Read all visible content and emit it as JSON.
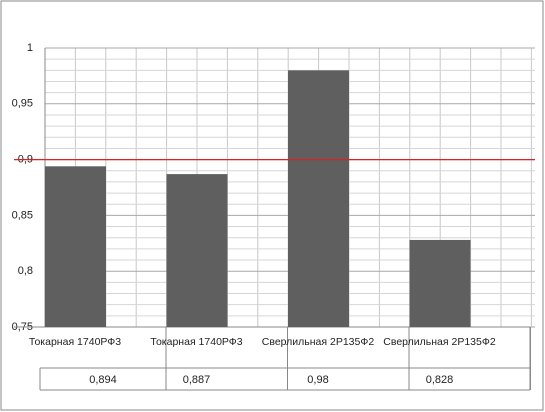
{
  "chart_data": {
    "type": "bar",
    "categories": [
      "Токарная  1740РФ3",
      "Токарная 1740РФ3",
      "Сверлильная 2Р135Ф2",
      "Сверлильная 2Р135Ф2"
    ],
    "values": [
      0.894,
      0.887,
      0.98,
      0.828
    ],
    "value_labels": [
      "0,894",
      "0,887",
      "0,98",
      "0,828"
    ],
    "color": "#5f5f5f",
    "ylim": [
      0.75,
      1
    ],
    "yticks": [
      {
        "value": 0.75,
        "label": "0,75"
      },
      {
        "value": 0.8,
        "label": "0,8"
      },
      {
        "value": 0.85,
        "label": "0,85"
      },
      {
        "value": 0.9,
        "label": "0,9"
      },
      {
        "value": 0.95,
        "label": "0,95"
      },
      1
    ],
    "grid": true,
    "threshold": 0.9,
    "threshold_color": "#e02020"
  }
}
